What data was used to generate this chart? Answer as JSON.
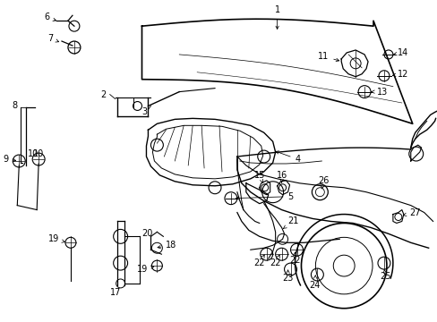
{
  "background_color": "#ffffff",
  "figsize": [
    4.89,
    3.6
  ],
  "dpi": 100,
  "line_color": "#000000",
  "lw_main": 1.0,
  "lw_thin": 0.6,
  "font_size": 7.0
}
